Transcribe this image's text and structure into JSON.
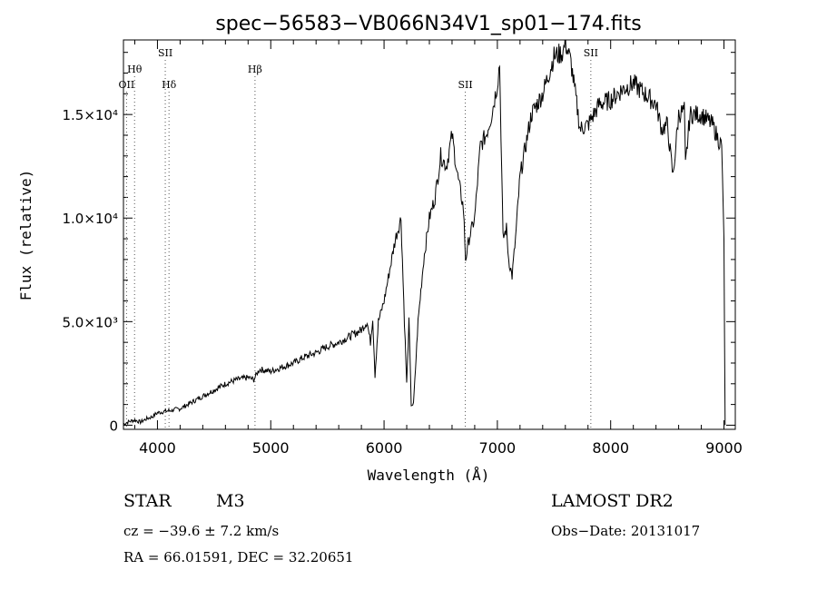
{
  "chart_data": {
    "type": "line",
    "title": "spec−56583−VB066N34V1_sp01−174.fits",
    "xlabel": "Wavelength (Å)",
    "ylabel": "Flux (relative)",
    "xlim": [
      3700,
      9100
    ],
    "ylim": [
      -200,
      18600
    ],
    "x_ticks": [
      {
        "value": 4000,
        "label": "4000"
      },
      {
        "value": 5000,
        "label": "5000"
      },
      {
        "value": 6000,
        "label": "6000"
      },
      {
        "value": 7000,
        "label": "7000"
      },
      {
        "value": 8000,
        "label": "8000"
      },
      {
        "value": 9000,
        "label": "9000"
      }
    ],
    "y_ticks": [
      {
        "value": 0,
        "label": "0"
      },
      {
        "value": 5000,
        "label": "5.0×10³"
      },
      {
        "value": 10000,
        "label": "1.0×10⁴"
      },
      {
        "value": 15000,
        "label": "1.5×10⁴"
      }
    ],
    "lines": [
      {
        "name": "OII",
        "wavelength": 3727,
        "label_level": 1
      },
      {
        "name": "Hθ",
        "wavelength": 3798,
        "label_level": 2
      },
      {
        "name": "SII",
        "wavelength": 4069,
        "label_level": 3
      },
      {
        "name": "Hδ",
        "wavelength": 4102,
        "label_level": 1
      },
      {
        "name": "Hβ",
        "wavelength": 4861,
        "label_level": 2
      },
      {
        "name": "SII",
        "wavelength": 6717,
        "label_level": 1
      },
      {
        "name": "SII",
        "wavelength": 7825,
        "label_level": 3
      }
    ],
    "spectrum_anchors": [
      [
        3700,
        50
      ],
      [
        3750,
        180
      ],
      [
        3800,
        250
      ],
      [
        3850,
        150
      ],
      [
        3900,
        300
      ],
      [
        3950,
        400
      ],
      [
        4000,
        600
      ],
      [
        4100,
        700
      ],
      [
        4200,
        800
      ],
      [
        4300,
        1100
      ],
      [
        4400,
        1400
      ],
      [
        4500,
        1700
      ],
      [
        4600,
        2000
      ],
      [
        4700,
        2200
      ],
      [
        4800,
        2300
      ],
      [
        4850,
        2200
      ],
      [
        4900,
        2700
      ],
      [
        5000,
        2600
      ],
      [
        5100,
        2800
      ],
      [
        5200,
        3000
      ],
      [
        5300,
        3300
      ],
      [
        5400,
        3500
      ],
      [
        5500,
        3800
      ],
      [
        5600,
        4000
      ],
      [
        5700,
        4300
      ],
      [
        5800,
        4600
      ],
      [
        5850,
        5000
      ],
      [
        5880,
        4000
      ],
      [
        5900,
        5200
      ],
      [
        5920,
        2400
      ],
      [
        5950,
        5000
      ],
      [
        6000,
        6000
      ],
      [
        6050,
        7500
      ],
      [
        6100,
        9000
      ],
      [
        6150,
        10000
      ],
      [
        6180,
        5000
      ],
      [
        6200,
        2000
      ],
      [
        6220,
        5000
      ],
      [
        6240,
        1000
      ],
      [
        6260,
        1000
      ],
      [
        6300,
        5000
      ],
      [
        6350,
        8000
      ],
      [
        6400,
        10000
      ],
      [
        6450,
        11000
      ],
      [
        6500,
        13000
      ],
      [
        6550,
        12500
      ],
      [
        6600,
        14000
      ],
      [
        6650,
        12000
      ],
      [
        6700,
        10500
      ],
      [
        6720,
        8000
      ],
      [
        6750,
        9000
      ],
      [
        6800,
        10000
      ],
      [
        6850,
        13500
      ],
      [
        6900,
        14000
      ],
      [
        6950,
        15000
      ],
      [
        7000,
        16500
      ],
      [
        7020,
        17500
      ],
      [
        7050,
        9000
      ],
      [
        7080,
        9500
      ],
      [
        7100,
        8000
      ],
      [
        7130,
        7200
      ],
      [
        7160,
        9000
      ],
      [
        7200,
        12000
      ],
      [
        7300,
        15000
      ],
      [
        7400,
        16000
      ],
      [
        7500,
        17800
      ],
      [
        7580,
        18000
      ],
      [
        7600,
        18500
      ],
      [
        7650,
        17500
      ],
      [
        7700,
        15500
      ],
      [
        7730,
        14300
      ],
      [
        7800,
        14500
      ],
      [
        7850,
        15000
      ],
      [
        7900,
        15500
      ],
      [
        8000,
        15700
      ],
      [
        8100,
        16200
      ],
      [
        8200,
        16500
      ],
      [
        8300,
        16000
      ],
      [
        8400,
        15500
      ],
      [
        8450,
        14300
      ],
      [
        8500,
        14500
      ],
      [
        8550,
        12000
      ],
      [
        8600,
        15000
      ],
      [
        8650,
        15200
      ],
      [
        8660,
        12500
      ],
      [
        8700,
        15000
      ],
      [
        8800,
        15000
      ],
      [
        8900,
        14500
      ],
      [
        8950,
        13800
      ],
      [
        8980,
        13500
      ],
      [
        9000,
        9000
      ],
      [
        9010,
        0
      ]
    ]
  },
  "info": {
    "object": "STAR",
    "subclass": "M3",
    "cz": "cz = −39.6 ± 7.2 km/s",
    "coords": "RA =  66.01591, DEC =  32.20651",
    "survey": "LAMOST DR2",
    "obs_date": "Obs−Date: 20131017"
  }
}
